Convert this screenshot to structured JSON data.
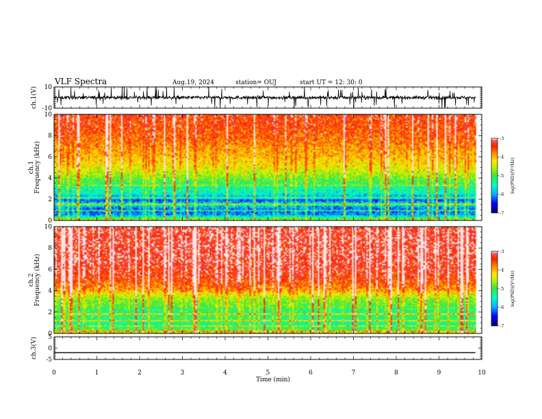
{
  "header": {
    "title": "VLF Spectra",
    "date": "Aug.19, 2024",
    "station": "station= OUJ",
    "start": "start  UT  =   12: 30: 0"
  },
  "colors": {
    "colormap": [
      "#ffffff",
      "#ff0000",
      "#ff8000",
      "#ffff00",
      "#00ff00",
      "#00ffff",
      "#0000ff",
      "#000080"
    ],
    "waveform": "#000000"
  },
  "chart_data": [
    {
      "type": "line",
      "name": "ch1-waveform",
      "ylabel": "ch.1(V)",
      "ylim": [
        -10,
        10
      ],
      "yticks": [
        "10",
        "-10"
      ],
      "xlim": [
        0,
        10
      ],
      "baseline": 0,
      "amplitude_note": "noisy trace, typical excursions ~ ±3 V with spikes to ±10 V"
    },
    {
      "type": "heatmap",
      "name": "ch1-spectrogram",
      "ylabel": "ch.1\nFrequency (kHz)",
      "ylim": [
        0,
        10
      ],
      "yticks": [
        "0",
        "2",
        "4",
        "6",
        "8",
        "10"
      ],
      "xlim": [
        0,
        10
      ],
      "profile": [
        {
          "f": 0,
          "v": -4.8
        },
        {
          "f": 0.5,
          "v": -6.2
        },
        {
          "f": 1,
          "v": -6.3
        },
        {
          "f": 1.5,
          "v": -5.8
        },
        {
          "f": 2,
          "v": -6.6
        },
        {
          "f": 2.5,
          "v": -5.6
        },
        {
          "f": 3,
          "v": -5.5
        },
        {
          "f": 3.5,
          "v": -5.2
        },
        {
          "f": 4,
          "v": -4.9
        },
        {
          "f": 5,
          "v": -4.4
        },
        {
          "f": 6,
          "v": -4.1
        },
        {
          "f": 7,
          "v": -3.9
        },
        {
          "f": 8,
          "v": -3.7
        },
        {
          "f": 9,
          "v": -3.6
        },
        {
          "f": 10,
          "v": -3.5
        }
      ],
      "colorbar": {
        "label": "log(PSD)(V²/Hz)",
        "range": [
          -7,
          -3
        ],
        "ticks": [
          "-3",
          "-4",
          "-5",
          "-6",
          "-7"
        ]
      }
    },
    {
      "type": "heatmap",
      "name": "ch2-spectrogram",
      "ylabel": "ch.2\nFrequency (kHz)",
      "ylim": [
        0,
        10
      ],
      "yticks": [
        "0",
        "2",
        "4",
        "6",
        "8",
        "10"
      ],
      "xlim": [
        0,
        10
      ],
      "profile": [
        {
          "f": 0,
          "v": -4.6
        },
        {
          "f": 0.5,
          "v": -5.3
        },
        {
          "f": 1,
          "v": -5.4
        },
        {
          "f": 1.5,
          "v": -5.2
        },
        {
          "f": 2,
          "v": -5.3
        },
        {
          "f": 2.5,
          "v": -5.0
        },
        {
          "f": 3,
          "v": -4.9
        },
        {
          "f": 3.5,
          "v": -4.6
        },
        {
          "f": 4,
          "v": -4.0
        },
        {
          "f": 5,
          "v": -3.6
        },
        {
          "f": 6,
          "v": -3.4
        },
        {
          "f": 7,
          "v": -3.3
        },
        {
          "f": 8,
          "v": -3.3
        },
        {
          "f": 9,
          "v": -3.3
        },
        {
          "f": 10,
          "v": -3.3
        }
      ],
      "colorbar": {
        "label": "log(PSD)(V²/Hz)",
        "range": [
          -7,
          -3
        ],
        "ticks": [
          "-3",
          "-4",
          "-5",
          "-6",
          "-7"
        ]
      }
    },
    {
      "type": "line",
      "name": "ch3-waveform",
      "ylabel": "ch.3(V)",
      "ylim": [
        -5,
        5
      ],
      "yticks": [
        "5",
        "0",
        "-5"
      ],
      "xlim": [
        0,
        10
      ],
      "constant_value": -2
    }
  ],
  "xaxis": {
    "label": "Time  (min)",
    "ticks": [
      "0",
      "1",
      "2",
      "3",
      "4",
      "5",
      "6",
      "7",
      "8",
      "9",
      "10"
    ],
    "data_end": 9.85
  }
}
